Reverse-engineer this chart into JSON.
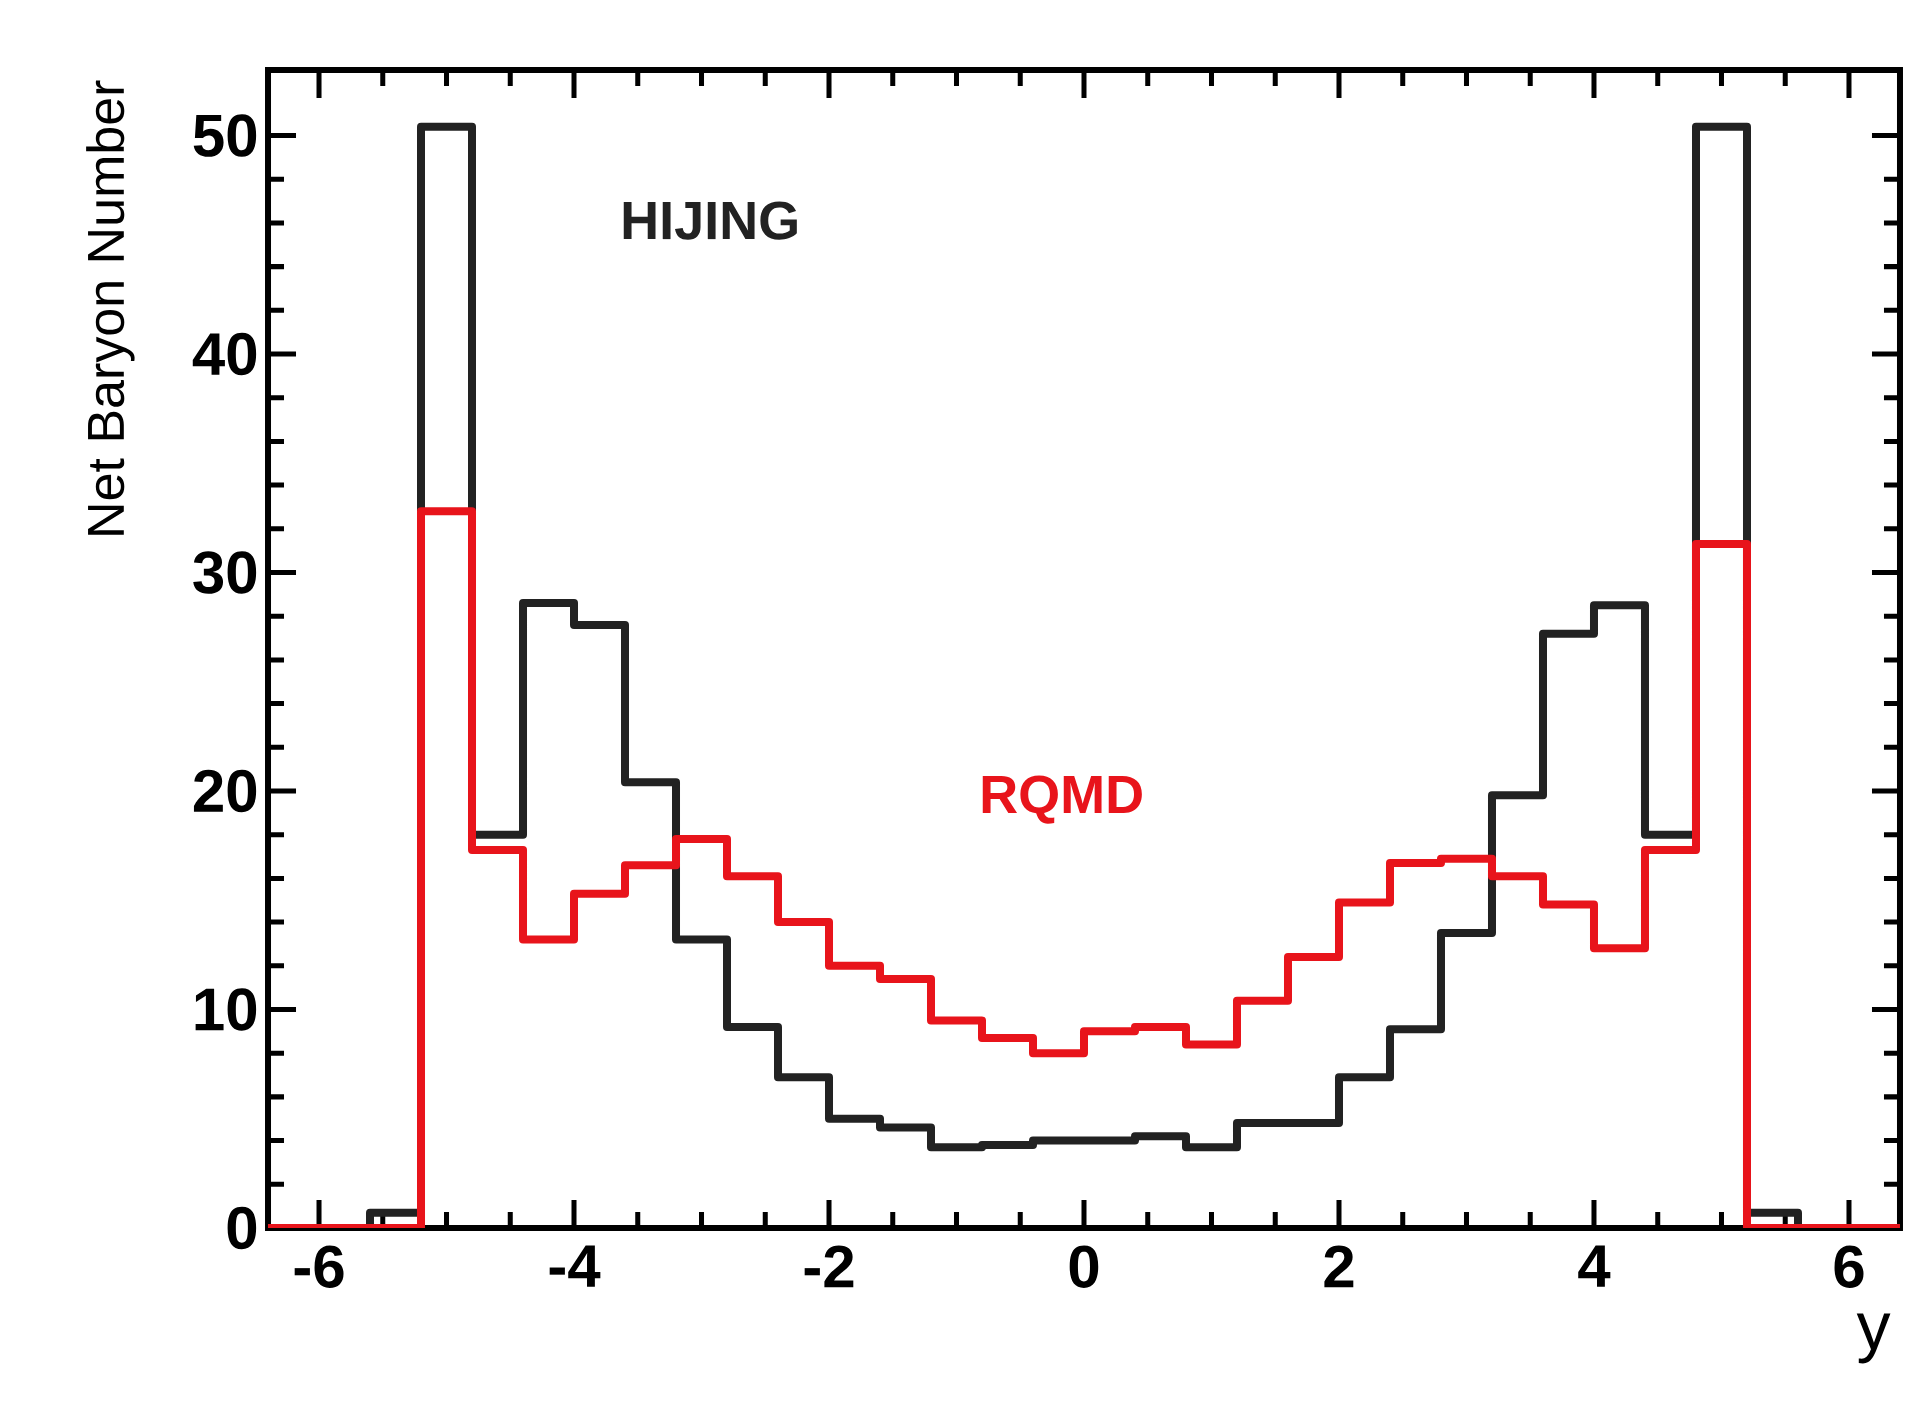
{
  "chart_data": {
    "type": "histogram",
    "xlabel": "y",
    "ylabel": "Net Baryon Number",
    "bins": [
      -6.4,
      -6.0,
      -5.6,
      -5.2,
      -4.8,
      -4.4,
      -4.0,
      -3.6,
      -3.2,
      -2.8,
      -2.4,
      -2.0,
      -1.6,
      -1.2,
      -0.8,
      -0.4,
      0,
      0.4,
      0.8,
      1.2,
      1.6,
      2.0,
      2.4,
      2.8,
      3.2,
      3.6,
      4.0,
      4.4,
      4.8,
      5.2,
      5.6,
      6.0,
      6.4
    ],
    "series": [
      {
        "name": "HIJING",
        "color": "#222222",
        "values": [
          0,
          0,
          0.7,
          50.4,
          18.0,
          28.6,
          27.6,
          20.4,
          13.2,
          9.2,
          6.9,
          5.0,
          4.6,
          3.7,
          3.8,
          4.0,
          4.0,
          4.2,
          3.7,
          4.8,
          4.8,
          6.9,
          9.1,
          13.5,
          19.8,
          27.2,
          28.5,
          18.0,
          50.4,
          0.7,
          0,
          0
        ]
      },
      {
        "name": "RQMD",
        "color": "#e8141b",
        "values": [
          0,
          0,
          0,
          32.8,
          17.3,
          13.2,
          15.3,
          16.6,
          17.8,
          16.1,
          14.0,
          12.0,
          11.4,
          9.5,
          8.7,
          8.0,
          9.0,
          9.2,
          8.4,
          10.4,
          12.4,
          14.9,
          16.7,
          16.9,
          16.1,
          14.8,
          12.8,
          17.3,
          31.3,
          0,
          0,
          0
        ]
      }
    ],
    "xlim": [
      -6.4,
      6.4
    ],
    "ylim": [
      0,
      53
    ],
    "xticks": [
      -6,
      -4,
      -2,
      0,
      2,
      4,
      6
    ],
    "yticks": [
      0,
      10,
      20,
      30,
      40,
      50
    ],
    "legend": false,
    "grid": false
  }
}
